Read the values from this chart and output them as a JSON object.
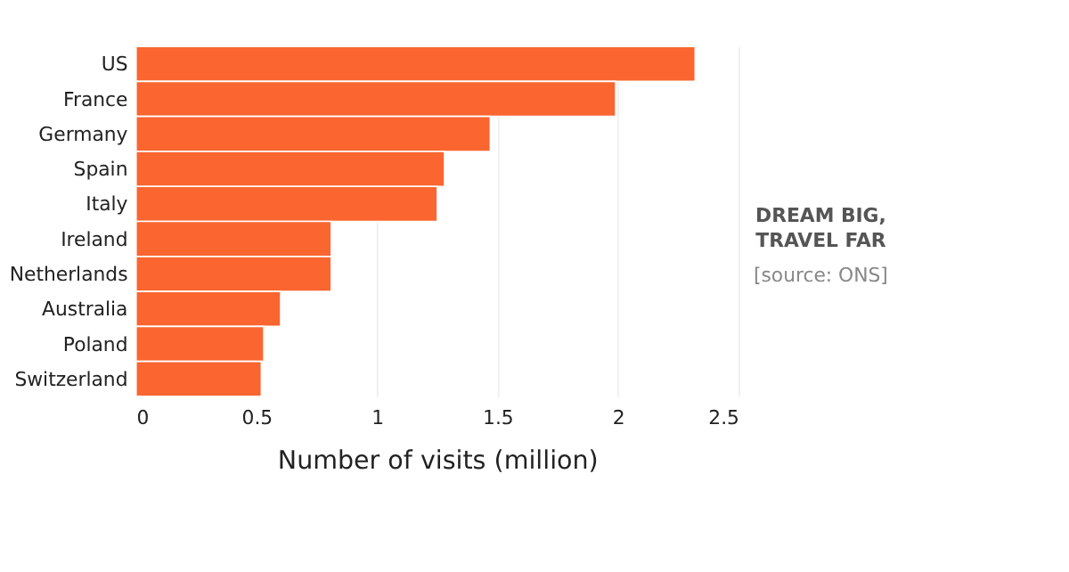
{
  "chart_data": {
    "type": "bar",
    "orientation": "horizontal",
    "xlabel": "Number of visits (million)",
    "categories": [
      "US",
      "France",
      "Germany",
      "Spain",
      "Italy",
      "Ireland",
      "Netherlands",
      "Australia",
      "Poland",
      "Switzerland"
    ],
    "values": [
      2.32,
      1.99,
      1.47,
      1.28,
      1.25,
      0.81,
      0.81,
      0.6,
      0.53,
      0.52
    ],
    "color": "#fa6530",
    "xlim": [
      0,
      2.5
    ],
    "xticks": [
      0,
      0.5,
      1,
      1.5,
      2,
      2.5
    ],
    "grid": "x",
    "annotations": [
      "DREAM BIG,\nTRAVEL FAR",
      "[source: ONS]"
    ]
  }
}
